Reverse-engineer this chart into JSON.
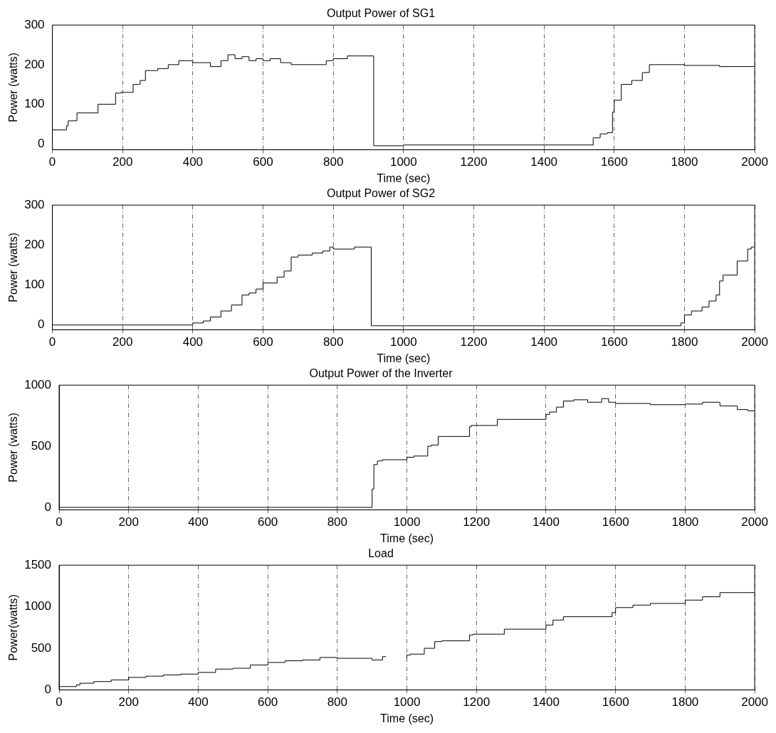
{
  "chart_data": [
    {
      "type": "step",
      "title": "Output Power of SG1",
      "xlabel": "Time (sec)",
      "ylabel": "Power (watts)",
      "grid": "x",
      "legend": false,
      "x": [
        0,
        40,
        45,
        70,
        95,
        130,
        145,
        180,
        195,
        230,
        250,
        265,
        300,
        330,
        360,
        370,
        400,
        450,
        480,
        500,
        520,
        540,
        560,
        580,
        600,
        620,
        650,
        680,
        700,
        780,
        800,
        840,
        860,
        915,
        918,
        1000,
        1400,
        1540,
        1560,
        1580,
        1595,
        1600,
        1620,
        1650,
        1680,
        1700,
        1715,
        1800,
        1900,
        2000
      ],
      "series": [
        {
          "color": "#000000",
          "values": [
            35,
            35,
            45,
            58,
            78,
            78,
            100,
            100,
            128,
            130,
            150,
            160,
            185,
            190,
            200,
            210,
            210,
            205,
            195,
            210,
            225,
            215,
            220,
            210,
            215,
            210,
            215,
            205,
            200,
            200,
            210,
            215,
            222,
            222,
            -5,
            -5,
            -3,
            -3,
            15,
            25,
            28,
            80,
            110,
            150,
            160,
            180,
            200,
            200,
            198,
            195
          ]
        }
      ],
      "xlim": [
        0,
        2000
      ],
      "ylim": [
        -15,
        300
      ],
      "xticks": [
        0,
        200,
        400,
        600,
        800,
        1000,
        1200,
        1400,
        1600,
        1800,
        2000
      ],
      "yticks": [
        0,
        100,
        200,
        300
      ]
    },
    {
      "type": "step",
      "title": "Output Power of SG2",
      "xlabel": "Time (sec)",
      "ylabel": "Power (watts)",
      "grid": "x",
      "legend": false,
      "x": [
        0,
        400,
        430,
        450,
        480,
        510,
        540,
        560,
        580,
        600,
        610,
        640,
        660,
        680,
        700,
        740,
        770,
        790,
        800,
        820,
        860,
        900,
        908,
        910,
        1000,
        1790,
        1800,
        1820,
        1850,
        1870,
        1890,
        1900,
        1910,
        1920,
        1950,
        1960,
        1980,
        1990,
        2000
      ],
      "series": [
        {
          "color": "#000000",
          "values": [
            0,
            0,
            5,
            10,
            20,
            35,
            50,
            75,
            80,
            90,
            105,
            105,
            120,
            135,
            170,
            175,
            180,
            185,
            195,
            190,
            190,
            195,
            195,
            -2,
            -2,
            -2,
            5,
            25,
            35,
            45,
            60,
            75,
            110,
            125,
            125,
            160,
            160,
            190,
            195
          ]
        }
      ],
      "xlim": [
        0,
        2000
      ],
      "ylim": [
        -12,
        300
      ],
      "xticks": [
        0,
        200,
        400,
        600,
        800,
        1000,
        1200,
        1400,
        1600,
        1800,
        2000
      ],
      "yticks": [
        0,
        100,
        200,
        300
      ]
    },
    {
      "type": "step",
      "title": "Output Power of the Inverter",
      "xlabel": "Time (sec)",
      "ylabel": "Power (watts)",
      "grid": "x",
      "legend": false,
      "x": [
        0,
        900,
        905,
        915,
        930,
        1000,
        1020,
        1060,
        1070,
        1090,
        1100,
        1180,
        1185,
        1260,
        1280,
        1400,
        1410,
        1430,
        1450,
        1480,
        1520,
        1560,
        1580,
        1600,
        1650,
        1700,
        1800,
        1850,
        1900,
        1950,
        1980,
        2000
      ],
      "series": [
        {
          "color": "#000000",
          "values": [
            0,
            0,
            150,
            350,
            380,
            390,
            410,
            420,
            500,
            510,
            580,
            580,
            660,
            670,
            720,
            720,
            760,
            780,
            820,
            870,
            880,
            860,
            890,
            860,
            850,
            850,
            840,
            845,
            860,
            830,
            800,
            790
          ]
        }
      ],
      "xlim": [
        0,
        2000
      ],
      "ylim": [
        -20,
        1000
      ],
      "xticks": [
        0,
        200,
        400,
        600,
        800,
        1000,
        1200,
        1400,
        1600,
        1800,
        2000
      ],
      "yticks": [
        0,
        500,
        1000
      ]
    },
    {
      "type": "step",
      "title": "Load",
      "xlabel": "Time (sec)",
      "ylabel": "Power(watts)",
      "grid": "x",
      "legend": false,
      "x": [
        0,
        50,
        60,
        100,
        150,
        200,
        250,
        300,
        350,
        400,
        450,
        500,
        550,
        600,
        650,
        700,
        750,
        800,
        900,
        930,
        940,
        945,
        1000,
        1010,
        1050,
        1080,
        1100,
        1180,
        1190,
        1280,
        1300,
        1400,
        1420,
        1450,
        1500,
        1590,
        1600,
        1650,
        1700,
        1800,
        1850,
        1900,
        1950,
        2000
      ],
      "series": [
        {
          "color": "#000000",
          "values": [
            40,
            40,
            60,
            80,
            100,
            120,
            150,
            165,
            180,
            190,
            210,
            250,
            260,
            300,
            330,
            350,
            360,
            390,
            380,
            360,
            400,
            null,
            380,
            420,
            430,
            500,
            580,
            590,
            660,
            670,
            730,
            730,
            780,
            840,
            880,
            880,
            930,
            990,
            1020,
            1040,
            1080,
            1120,
            1170,
            1170
          ]
        }
      ],
      "xlim": [
        0,
        2000
      ],
      "ylim": [
        0,
        1500
      ],
      "xticks": [
        0,
        200,
        400,
        600,
        800,
        1000,
        1200,
        1400,
        1600,
        1800,
        2000
      ],
      "yticks": [
        0,
        500,
        1000,
        1500
      ]
    }
  ]
}
